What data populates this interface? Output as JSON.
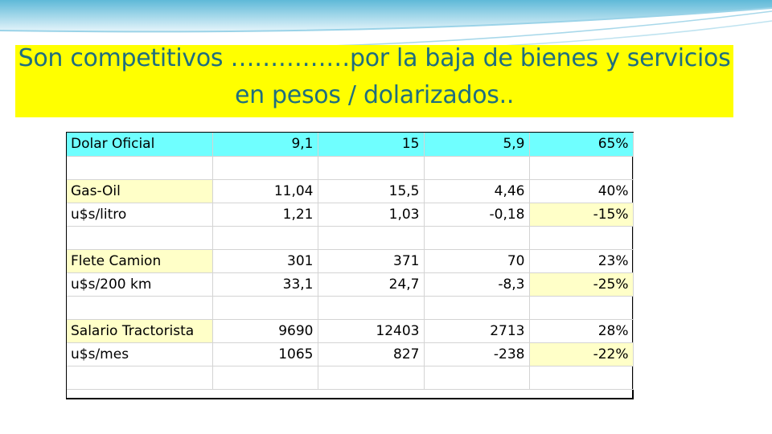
{
  "slide": {
    "title": "Son competitivos ……………por la baja de bienes y servicios en pesos / dolarizados..",
    "colors": {
      "title_text": "#1f6e7f",
      "title_background": "#ffff00",
      "header_row": "#6fffff",
      "highlight_cell": "#ffffc8"
    }
  },
  "table": {
    "rows": [
      {
        "label": "Dolar Oficial",
        "c1": "9,1",
        "c2": "15",
        "c3": "5,9",
        "c4": "65%"
      },
      {
        "label": "",
        "c1": "",
        "c2": "",
        "c3": "",
        "c4": ""
      },
      {
        "label": "Gas-Oil",
        "c1": "11,04",
        "c2": "15,5",
        "c3": "4,46",
        "c4": "40%"
      },
      {
        "label": "u$s/litro",
        "c1": "1,21",
        "c2": "1,03",
        "c3": "-0,18",
        "c4": "-15%"
      },
      {
        "label": "",
        "c1": "",
        "c2": "",
        "c3": "",
        "c4": ""
      },
      {
        "label": "Flete Camion",
        "c1": "301",
        "c2": "371",
        "c3": "70",
        "c4": "23%"
      },
      {
        "label": "u$s/200 km",
        "c1": "33,1",
        "c2": "24,7",
        "c3": "-8,3",
        "c4": "-25%"
      },
      {
        "label": "",
        "c1": "",
        "c2": "",
        "c3": "",
        "c4": ""
      },
      {
        "label": "Salario Tractorista",
        "c1": "9690",
        "c2": "12403",
        "c3": "2713",
        "c4": "28%"
      },
      {
        "label": "u$s/mes",
        "c1": "1065",
        "c2": "827",
        "c3": "-238",
        "c4": "-22%"
      },
      {
        "label": "",
        "c1": "",
        "c2": "",
        "c3": "",
        "c4": ""
      }
    ]
  }
}
